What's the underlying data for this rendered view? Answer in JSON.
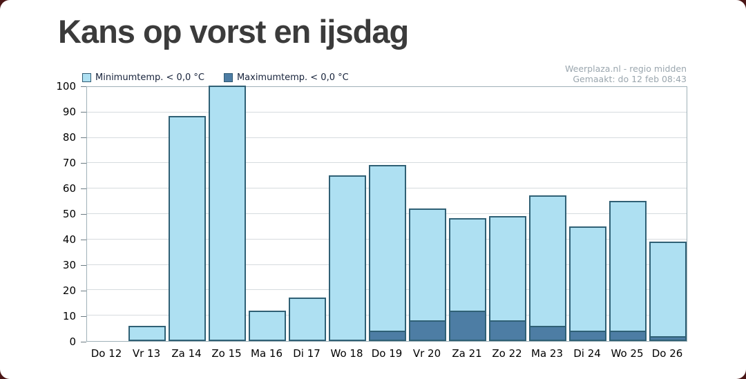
{
  "page": {
    "title": "Kans op vorst en ijsdag",
    "source_line1": "Weerplaza.nl - regio midden",
    "source_line2": "Gemaakt: do 12 feb 08:43"
  },
  "chart_data": {
    "type": "bar",
    "title": "Kans op vorst en ijsdag",
    "categories": [
      "Do 12",
      "Vr 13",
      "Za 14",
      "Zo 15",
      "Ma 16",
      "Di 17",
      "Wo 18",
      "Do 19",
      "Vr 20",
      "Za 21",
      "Zo 22",
      "Ma 23",
      "Di 24",
      "Wo 25",
      "Do 26"
    ],
    "series": [
      {
        "name": "Minimumtemp. < 0,0 °C",
        "color": "#aee0f2",
        "values": [
          0,
          6,
          88,
          100,
          12,
          17,
          65,
          69,
          52,
          48,
          49,
          57,
          45,
          55,
          39
        ]
      },
      {
        "name": "Maximumtemp. < 0,0 °C",
        "color": "#4d7da4",
        "values": [
          0,
          0,
          0,
          0,
          0,
          0,
          0,
          4,
          8,
          12,
          8,
          6,
          4,
          4,
          2
        ]
      }
    ],
    "xlabel": "",
    "ylabel": "",
    "ylim": [
      0,
      100
    ],
    "ytick_step": 10,
    "grid": true,
    "legend_position": "top-left",
    "bar_border_color": "#2f6075"
  }
}
